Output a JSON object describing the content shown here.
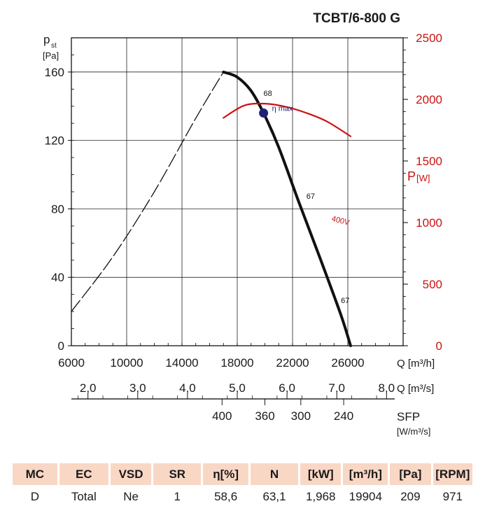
{
  "title": "TCBT/6-800 G",
  "chart_data": {
    "type": "line",
    "title": "TCBT/6-800 G",
    "y_left": {
      "label": "p",
      "subscript": "st",
      "unit": "[Pa]",
      "range": [
        0,
        180
      ],
      "ticks": [
        0,
        40,
        80,
        120,
        160
      ]
    },
    "y_right": {
      "label": "P",
      "unit": "[W]",
      "range": [
        0,
        2500
      ],
      "ticks": [
        0,
        500,
        1000,
        1500,
        2000,
        2500
      ]
    },
    "x_primary": {
      "label": "Q [m³/h]",
      "range": [
        6000,
        30000
      ],
      "ticks": [
        6000,
        10000,
        14000,
        18000,
        22000,
        26000
      ]
    },
    "x_secondary": {
      "label": "Q [m³/s]",
      "ticks": [
        2.0,
        3.0,
        4.0,
        5.0,
        6.0,
        7.0,
        8.0
      ],
      "tick_labels": [
        "2,0",
        "3,0",
        "4,0",
        "5,0",
        "6,0",
        "7,0",
        "8,0"
      ]
    },
    "x_sfp": {
      "label": "SFP",
      "unit": "[W/m³/s]",
      "ticks": [
        400,
        360,
        300,
        240
      ],
      "tick_q_m3h": [
        16900,
        20000,
        22600,
        25700
      ]
    },
    "series": [
      {
        "name": "pressure unstable",
        "style": "dashed",
        "x": [
          6000,
          9000,
          12000,
          15000,
          17000
        ],
        "y": [
          20,
          52,
          90,
          133,
          160
        ]
      },
      {
        "name": "pressure",
        "style": "solid",
        "x": [
          17000,
          18000,
          19000,
          19904,
          21000,
          22500,
          24000,
          25500,
          26200
        ],
        "y": [
          160,
          157,
          149,
          136,
          116,
          83,
          51,
          18,
          0
        ]
      },
      {
        "name": "400V",
        "axis": "right",
        "color": "#cc1111",
        "x": [
          17000,
          18500,
          20000,
          21500,
          23000,
          24500,
          26200
        ],
        "y": [
          1850,
          1950,
          1965,
          1940,
          1890,
          1820,
          1700
        ]
      }
    ],
    "markers": [
      {
        "label": "η max",
        "x": 19904,
        "y": 136,
        "color": "#1f2178"
      }
    ],
    "annotations": [
      {
        "text": "68",
        "x": 19900,
        "y": 146
      },
      {
        "text": "67",
        "x": 23000,
        "y": 86
      },
      {
        "text": "67",
        "x": 25500,
        "y": 25
      },
      {
        "text": "400V",
        "x": 24800,
        "y": 73,
        "color": "#cc1111"
      }
    ]
  },
  "table": {
    "headers": [
      "MC",
      "EC",
      "VSD",
      "SR",
      "η[%]",
      "N",
      "[kW]",
      "[m³/h]",
      "[Pa]",
      "[RPM]"
    ],
    "values": [
      "D",
      "Total",
      "Ne",
      "1",
      "58,6",
      "63,1",
      "1,968",
      "19904",
      "209",
      "971"
    ]
  }
}
